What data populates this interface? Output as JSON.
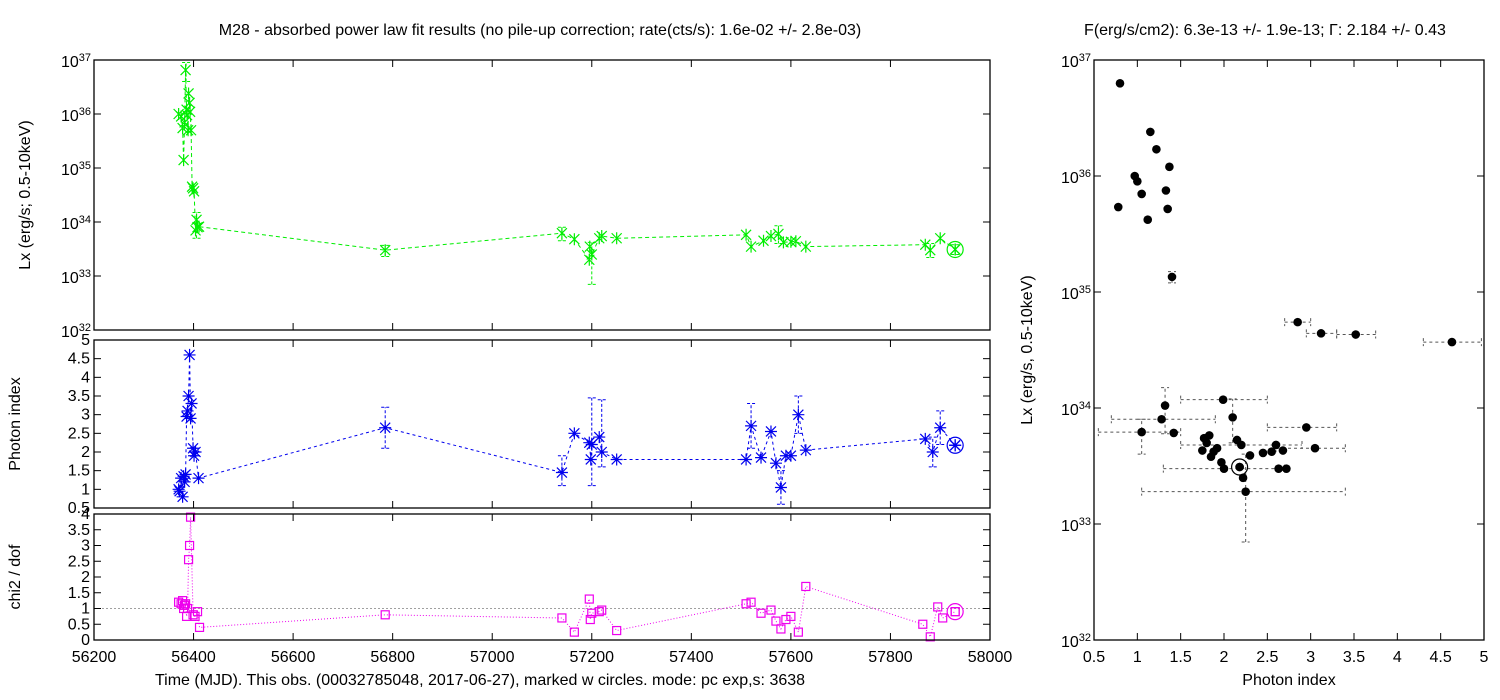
{
  "title_left": "M28  - absorbed power law fit results (no pile-up correction; rate(cts/s): 1.6e-02 +/- 2.8e-03)",
  "title_right": "F(erg/s/cm2): 6.3e-13 +/- 1.9e-13; Γ: 2.184 +/- 0.43",
  "colors": {
    "lx": "#00ee00",
    "gamma": "#0000ee",
    "chi": "#ee00ee",
    "scatter": "#000000",
    "ref": "#a0a0a0"
  },
  "chart_data": [
    {
      "type": "line",
      "panel": "lx-vs-time",
      "ylabel": "Lx (erg/s; 0.5-10keV)",
      "xlim": [
        56200,
        58000
      ],
      "ylim": [
        1e+32,
        1e+37
      ],
      "yscale": "log",
      "ytick_labels": [
        {
          "base": "10",
          "exp": "32"
        },
        {
          "base": "10",
          "exp": "33"
        },
        {
          "base": "10",
          "exp": "34"
        },
        {
          "base": "10",
          "exp": "35"
        },
        {
          "base": "10",
          "exp": "36"
        },
        {
          "base": "10",
          "exp": "37"
        }
      ],
      "ytick_values": [
        1e+32,
        1e+33,
        1e+34,
        1e+35,
        1e+36,
        1e+37
      ],
      "marker": "x-star",
      "points": [
        {
          "x": 56370,
          "y": 1e+36
        },
        {
          "x": 56375,
          "y": 9e+35
        },
        {
          "x": 56378,
          "y": 5.5e+35
        },
        {
          "x": 56380,
          "y": 1.4e+35
        },
        {
          "x": 56382,
          "y": 7e+35
        },
        {
          "x": 56384,
          "y": 6.5e+36
        },
        {
          "x": 56386,
          "y": 1.2e+36
        },
        {
          "x": 56387,
          "y": 9.5e+35
        },
        {
          "x": 56389,
          "y": 5e+35
        },
        {
          "x": 56390,
          "y": 2.4e+36
        },
        {
          "x": 56392,
          "y": 1.6e+36
        },
        {
          "x": 56393,
          "y": 1.1e+36
        },
        {
          "x": 56395,
          "y": 5e+35
        },
        {
          "x": 56397,
          "y": 4.5e+34
        },
        {
          "x": 56399,
          "y": 4.2e+34
        },
        {
          "x": 56401,
          "y": 3.7e+34
        },
        {
          "x": 56404,
          "y": 7e+33
        },
        {
          "x": 56406,
          "y": 1.1e+34
        },
        {
          "x": 56408,
          "y": 8e+33
        },
        {
          "x": 56411,
          "y": 8.2e+33
        },
        {
          "x": 56785,
          "y": 3e+33
        },
        {
          "x": 57140,
          "y": 6.2e+33
        },
        {
          "x": 57165,
          "y": 4.8e+33
        },
        {
          "x": 57195,
          "y": 2e+33
        },
        {
          "x": 57196,
          "y": 3.5e+33
        },
        {
          "x": 57200,
          "y": 2.5e+33
        },
        {
          "x": 57215,
          "y": 5e+33
        },
        {
          "x": 57220,
          "y": 5.5e+33
        },
        {
          "x": 57250,
          "y": 5e+33
        },
        {
          "x": 57510,
          "y": 5.8e+33
        },
        {
          "x": 57520,
          "y": 3.5e+33
        },
        {
          "x": 57545,
          "y": 4.5e+33
        },
        {
          "x": 57560,
          "y": 5.5e+33
        },
        {
          "x": 57575,
          "y": 6e+33
        },
        {
          "x": 57585,
          "y": 4.2e+33
        },
        {
          "x": 57600,
          "y": 4.3e+33
        },
        {
          "x": 57610,
          "y": 4.4e+33
        },
        {
          "x": 57630,
          "y": 3.5e+33
        },
        {
          "x": 57870,
          "y": 3.8e+33
        },
        {
          "x": 57880,
          "y": 3e+33
        },
        {
          "x": 57900,
          "y": 5e+33
        },
        {
          "x": 57930,
          "y": 3.1e+33
        }
      ],
      "errors": [
        {
          "x": 56385,
          "lo": 4e+36,
          "hi": 9e+36
        },
        {
          "x": 56406,
          "lo": 5e+33,
          "hi": 1.5e+34
        },
        {
          "x": 56785,
          "lo": 2.3e+33,
          "hi": 3.7e+33
        },
        {
          "x": 57140,
          "lo": 4.5e+33,
          "hi": 8e+33
        },
        {
          "x": 57200,
          "lo": 7e+32,
          "hi": 4.2e+33
        },
        {
          "x": 57575,
          "lo": 4e+33,
          "hi": 8.5e+33
        },
        {
          "x": 57880,
          "lo": 2.2e+33,
          "hi": 4e+33
        },
        {
          "x": 57930,
          "lo": 2.5e+33,
          "hi": 3.8e+33
        }
      ],
      "current": {
        "x": 57930,
        "y": 3.1e+33
      }
    },
    {
      "type": "line",
      "panel": "photon-index-vs-time",
      "ylabel": "Photon index",
      "xlim": [
        56200,
        58000
      ],
      "ylim": [
        0.5,
        5
      ],
      "ytick_labels": [
        "0.5",
        "1",
        "1.5",
        "2",
        "2.5",
        "3",
        "3.5",
        "4",
        "4.5",
        "5"
      ],
      "ytick_values": [
        0.5,
        1,
        1.5,
        2,
        2.5,
        3,
        3.5,
        4,
        4.5,
        5
      ],
      "marker": "star",
      "points": [
        {
          "x": 56370,
          "y": 1.0
        },
        {
          "x": 56372,
          "y": 0.95
        },
        {
          "x": 56375,
          "y": 1.3
        },
        {
          "x": 56378,
          "y": 0.8
        },
        {
          "x": 56380,
          "y": 1.35
        },
        {
          "x": 56382,
          "y": 1.2
        },
        {
          "x": 56384,
          "y": 1.4
        },
        {
          "x": 56386,
          "y": 2.95
        },
        {
          "x": 56388,
          "y": 3.1
        },
        {
          "x": 56390,
          "y": 3.5
        },
        {
          "x": 56392,
          "y": 4.6
        },
        {
          "x": 56394,
          "y": 2.9
        },
        {
          "x": 56396,
          "y": 3.3
        },
        {
          "x": 56399,
          "y": 2.1
        },
        {
          "x": 56401,
          "y": 1.9
        },
        {
          "x": 56404,
          "y": 2.0
        },
        {
          "x": 56410,
          "y": 1.3
        },
        {
          "x": 56785,
          "y": 2.65
        },
        {
          "x": 57140,
          "y": 1.45
        },
        {
          "x": 57165,
          "y": 2.5
        },
        {
          "x": 57195,
          "y": 2.25
        },
        {
          "x": 57198,
          "y": 1.8
        },
        {
          "x": 57200,
          "y": 2.2
        },
        {
          "x": 57215,
          "y": 2.4
        },
        {
          "x": 57220,
          "y": 2.0
        },
        {
          "x": 57250,
          "y": 1.8
        },
        {
          "x": 57510,
          "y": 1.8
        },
        {
          "x": 57520,
          "y": 2.7
        },
        {
          "x": 57540,
          "y": 1.85
        },
        {
          "x": 57560,
          "y": 2.55
        },
        {
          "x": 57570,
          "y": 1.7
        },
        {
          "x": 57580,
          "y": 1.05
        },
        {
          "x": 57590,
          "y": 1.9
        },
        {
          "x": 57600,
          "y": 1.9
        },
        {
          "x": 57615,
          "y": 3.0
        },
        {
          "x": 57630,
          "y": 2.05
        },
        {
          "x": 57870,
          "y": 2.35
        },
        {
          "x": 57885,
          "y": 2.0
        },
        {
          "x": 57900,
          "y": 2.65
        },
        {
          "x": 57930,
          "y": 2.18
        }
      ],
      "errors": [
        {
          "x": 56785,
          "lo": 2.1,
          "hi": 3.2
        },
        {
          "x": 57140,
          "lo": 1.1,
          "hi": 1.9
        },
        {
          "x": 57200,
          "lo": 1.1,
          "hi": 3.45
        },
        {
          "x": 57220,
          "lo": 1.6,
          "hi": 3.4
        },
        {
          "x": 57520,
          "lo": 2.1,
          "hi": 3.3
        },
        {
          "x": 57580,
          "lo": 0.6,
          "hi": 1.5
        },
        {
          "x": 57615,
          "lo": 2.5,
          "hi": 3.5
        },
        {
          "x": 57885,
          "lo": 1.6,
          "hi": 2.4
        },
        {
          "x": 57900,
          "lo": 2.2,
          "hi": 3.1
        }
      ],
      "current": {
        "x": 57930,
        "y": 2.18
      }
    },
    {
      "type": "line",
      "panel": "chi2-vs-time",
      "ylabel": "chi2 / dof",
      "xlabel": "Time (MJD). This obs. (00032785048, 2017-06-27), marked w circles. mode: pc exp,s: 3638",
      "xlim": [
        56200,
        58000
      ],
      "ylim": [
        0,
        4
      ],
      "ytick_labels": [
        "0",
        "0.5",
        "1",
        "1.5",
        "2",
        "2.5",
        "3",
        "3.5",
        "4"
      ],
      "ytick_values": [
        0,
        0.5,
        1,
        1.5,
        2,
        2.5,
        3,
        3.5,
        4
      ],
      "xtick_labels": [
        "56200",
        "56400",
        "56600",
        "56800",
        "57000",
        "57200",
        "57400",
        "57600",
        "57800",
        "58000"
      ],
      "xtick_values": [
        56200,
        56400,
        56600,
        56800,
        57000,
        57200,
        57400,
        57600,
        57800,
        58000
      ],
      "reference_y": 1,
      "marker": "square",
      "points": [
        {
          "x": 56370,
          "y": 1.2
        },
        {
          "x": 56375,
          "y": 1.15
        },
        {
          "x": 56378,
          "y": 1.25
        },
        {
          "x": 56380,
          "y": 1.0
        },
        {
          "x": 56382,
          "y": 1.1
        },
        {
          "x": 56384,
          "y": 1.15
        },
        {
          "x": 56386,
          "y": 0.75
        },
        {
          "x": 56388,
          "y": 1.0
        },
        {
          "x": 56390,
          "y": 2.55
        },
        {
          "x": 56392,
          "y": 3.0
        },
        {
          "x": 56394,
          "y": 3.9
        },
        {
          "x": 56399,
          "y": 0.8
        },
        {
          "x": 56403,
          "y": 0.75
        },
        {
          "x": 56408,
          "y": 0.9
        },
        {
          "x": 56412,
          "y": 0.4
        },
        {
          "x": 56785,
          "y": 0.8
        },
        {
          "x": 57140,
          "y": 0.7
        },
        {
          "x": 57165,
          "y": 0.25
        },
        {
          "x": 57195,
          "y": 1.3
        },
        {
          "x": 57197,
          "y": 0.65
        },
        {
          "x": 57200,
          "y": 0.85
        },
        {
          "x": 57215,
          "y": 0.9
        },
        {
          "x": 57220,
          "y": 0.95
        },
        {
          "x": 57250,
          "y": 0.3
        },
        {
          "x": 57510,
          "y": 1.15
        },
        {
          "x": 57520,
          "y": 1.2
        },
        {
          "x": 57540,
          "y": 0.85
        },
        {
          "x": 57560,
          "y": 0.95
        },
        {
          "x": 57570,
          "y": 0.6
        },
        {
          "x": 57580,
          "y": 0.35
        },
        {
          "x": 57590,
          "y": 0.65
        },
        {
          "x": 57600,
          "y": 0.75
        },
        {
          "x": 57615,
          "y": 0.25
        },
        {
          "x": 57630,
          "y": 1.7
        },
        {
          "x": 57865,
          "y": 0.5
        },
        {
          "x": 57880,
          "y": 0.1
        },
        {
          "x": 57895,
          "y": 1.05
        },
        {
          "x": 57905,
          "y": 0.7
        },
        {
          "x": 57930,
          "y": 0.9
        }
      ],
      "current": {
        "x": 57930,
        "y": 0.9
      }
    },
    {
      "type": "scatter",
      "panel": "lx-vs-photon-index",
      "xlabel": "Photon index",
      "ylabel": "Lx (erg/s, 0.5-10keV)",
      "xlim": [
        0.5,
        5
      ],
      "ylim": [
        1e+32,
        1e+37
      ],
      "yscale": "log",
      "xtick_labels": [
        "0.5",
        "1",
        "1.5",
        "2",
        "2.5",
        "3",
        "3.5",
        "4",
        "4.5",
        "5"
      ],
      "xtick_values": [
        0.5,
        1,
        1.5,
        2,
        2.5,
        3,
        3.5,
        4,
        4.5,
        5
      ],
      "ytick_labels": [
        {
          "base": "10",
          "exp": "32"
        },
        {
          "base": "10",
          "exp": "33"
        },
        {
          "base": "10",
          "exp": "34"
        },
        {
          "base": "10",
          "exp": "35"
        },
        {
          "base": "10",
          "exp": "36"
        },
        {
          "base": "10",
          "exp": "37"
        }
      ],
      "ytick_values": [
        1e+32,
        1e+33,
        1e+34,
        1e+35,
        1e+36,
        1e+37
      ],
      "points": [
        {
          "x": 0.8,
          "y": 6.3e+36
        },
        {
          "x": 0.78,
          "y": 5.4e+35
        },
        {
          "x": 0.97,
          "y": 1e+36
        },
        {
          "x": 1.0,
          "y": 9e+35
        },
        {
          "x": 1.05,
          "y": 7e+35
        },
        {
          "x": 1.12,
          "y": 4.2e+35
        },
        {
          "x": 1.15,
          "y": 2.4e+36
        },
        {
          "x": 1.22,
          "y": 1.7e+36
        },
        {
          "x": 1.33,
          "y": 7.5e+35
        },
        {
          "x": 1.35,
          "y": 5.2e+35
        },
        {
          "x": 1.37,
          "y": 1.2e+36
        },
        {
          "x": 1.4,
          "y": 1.35e+35
        },
        {
          "x": 2.85,
          "y": 5.5e+34
        },
        {
          "x": 3.12,
          "y": 4.4e+34
        },
        {
          "x": 3.52,
          "y": 4.3e+34
        },
        {
          "x": 4.63,
          "y": 3.7e+34
        },
        {
          "x": 1.05,
          "y": 6.2e+33
        },
        {
          "x": 1.28,
          "y": 8e+33
        },
        {
          "x": 1.32,
          "y": 1.05e+34
        },
        {
          "x": 1.42,
          "y": 6.1e+33
        },
        {
          "x": 1.75,
          "y": 4.3e+33
        },
        {
          "x": 1.77,
          "y": 5.5e+33
        },
        {
          "x": 1.8,
          "y": 5e+33
        },
        {
          "x": 1.83,
          "y": 5.8e+33
        },
        {
          "x": 1.85,
          "y": 3.8e+33
        },
        {
          "x": 1.88,
          "y": 4.2e+33
        },
        {
          "x": 1.92,
          "y": 4.5e+33
        },
        {
          "x": 1.97,
          "y": 3.4e+33
        },
        {
          "x": 1.99,
          "y": 1.18e+34
        },
        {
          "x": 2.0,
          "y": 3e+33
        },
        {
          "x": 2.1,
          "y": 8.3e+33
        },
        {
          "x": 2.15,
          "y": 5.3e+33
        },
        {
          "x": 2.18,
          "y": 3.1e+33
        },
        {
          "x": 2.2,
          "y": 4.8e+33
        },
        {
          "x": 2.22,
          "y": 2.5e+33
        },
        {
          "x": 2.25,
          "y": 1.9e+33
        },
        {
          "x": 2.3,
          "y": 3.9e+33
        },
        {
          "x": 2.45,
          "y": 4.1e+33
        },
        {
          "x": 2.55,
          "y": 4.2e+33
        },
        {
          "x": 2.6,
          "y": 4.8e+33
        },
        {
          "x": 2.63,
          "y": 3e+33
        },
        {
          "x": 2.68,
          "y": 4.3e+33
        },
        {
          "x": 2.72,
          "y": 3e+33
        },
        {
          "x": 2.95,
          "y": 6.8e+33
        },
        {
          "x": 3.05,
          "y": 4.5e+33
        }
      ],
      "xerrors": [
        {
          "y": 5.5e+34,
          "lo": 2.7,
          "hi": 3.0
        },
        {
          "y": 4.4e+34,
          "lo": 2.95,
          "hi": 3.3
        },
        {
          "y": 4.3e+34,
          "lo": 3.3,
          "hi": 3.75
        },
        {
          "y": 3.7e+34,
          "lo": 4.3,
          "hi": 4.97
        },
        {
          "y": 6.2e+33,
          "lo": 0.55,
          "hi": 1.5
        },
        {
          "y": 8e+33,
          "lo": 0.7,
          "hi": 1.9
        },
        {
          "y": 1.18e+34,
          "lo": 1.5,
          "hi": 2.5
        },
        {
          "y": 3e+33,
          "lo": 1.3,
          "hi": 2.7
        },
        {
          "y": 1.9e+33,
          "lo": 1.05,
          "hi": 3.4
        },
        {
          "y": 4.5e+33,
          "lo": 2.6,
          "hi": 3.4
        },
        {
          "y": 6.8e+33,
          "lo": 2.5,
          "hi": 3.3
        },
        {
          "y": 4.8e+33,
          "lo": 1.5,
          "hi": 2.9
        }
      ],
      "yerrors": [
        {
          "x": 1.4,
          "lo": 1.2e+35,
          "hi": 1.5e+35
        },
        {
          "x": 1.32,
          "lo": 6e+33,
          "hi": 1.5e+34
        },
        {
          "x": 2.25,
          "lo": 7e+32,
          "hi": 4e+33
        },
        {
          "x": 2.1,
          "lo": 5e+33,
          "hi": 1.2e+34
        },
        {
          "x": 1.05,
          "lo": 4e+33,
          "hi": 8e+33
        }
      ],
      "current": {
        "x": 2.18,
        "y": 3.1e+33
      }
    }
  ]
}
